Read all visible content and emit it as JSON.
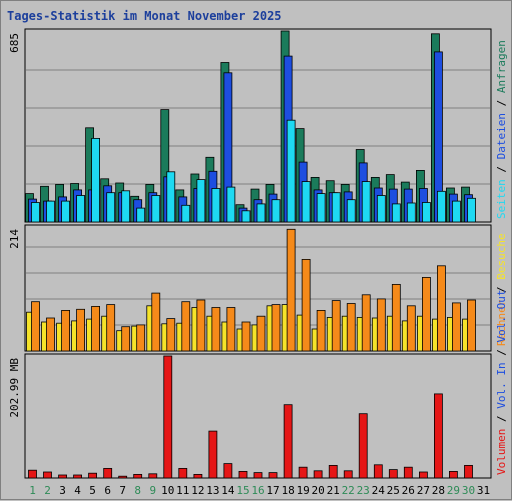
{
  "chart_data": {
    "type": "bar",
    "title": "Tages-Statistik im Monat November 2025",
    "categories": [
      "1",
      "2",
      "3",
      "4",
      "5",
      "6",
      "7",
      "8",
      "9",
      "10",
      "11",
      "12",
      "13",
      "14",
      "15",
      "16",
      "17",
      "18",
      "19",
      "20",
      "21",
      "22",
      "23",
      "24",
      "25",
      "26",
      "27",
      "28",
      "29",
      "30",
      "31"
    ],
    "weekend_days": [
      "1",
      "2",
      "8",
      "9",
      "15",
      "16",
      "22",
      "23",
      "29",
      "30"
    ],
    "colors": {
      "title": "#1c3f9c",
      "background": "#c0c0c0",
      "plot_background": "#c0c0c0",
      "weekday_label": "#000000",
      "weekend_label": "#2e8b57",
      "hits": "#1b7b5b",
      "files": "#1d4ee0",
      "pages": "#1ed9f2",
      "visits": "#f5e32a",
      "sites": "#f58a1a",
      "volume": "#e51616"
    },
    "panels": [
      {
        "name": "requests",
        "ymax_label": "685",
        "ylim": [
          0,
          685
        ],
        "series": [
          {
            "key": "hits",
            "values": [
              102,
              128,
              135,
              138,
              338,
              155,
              140,
              92,
              135,
              403,
              115,
              172,
              232,
              572,
              62,
              118,
              135,
              685,
              335,
              160,
              148,
              135,
              260,
              160,
              170,
              143,
              185,
              675,
              122,
              125,
              0
            ]
          },
          {
            "key": "files",
            "values": [
              82,
              75,
              90,
              115,
              115,
              130,
              105,
              80,
              105,
              162,
              90,
              120,
              182,
              535,
              50,
              80,
              100,
              595,
              215,
              115,
              105,
              108,
              212,
              122,
              118,
              118,
              120,
              610,
              100,
              98,
              0
            ]
          },
          {
            "key": "pages",
            "values": [
              70,
              75,
              75,
              95,
              300,
              105,
              112,
              50,
              95,
              180,
              60,
              152,
              120,
              125,
              40,
              65,
              80,
              365,
              145,
              102,
              105,
              80,
              145,
              95,
              65,
              68,
              70,
              110,
              75,
              85,
              0
            ]
          }
        ]
      },
      {
        "name": "visits",
        "ymax_label": "214",
        "ylim": [
          0,
          214
        ],
        "series": [
          {
            "key": "visits",
            "values": [
              67,
              50,
              48,
              52,
              55,
              60,
              35,
              43,
              78,
              47,
              48,
              75,
              60,
              50,
              38,
              45,
              78,
              80,
              62,
              38,
              58,
              60,
              58,
              57,
              60,
              52,
              60,
              55,
              58,
              55,
              0
            ]
          },
          {
            "key": "sites",
            "values": [
              85,
              57,
              70,
              72,
              77,
              80,
              42,
              45,
              100,
              56,
              85,
              88,
              75,
              75,
              50,
              60,
              80,
              210,
              158,
              70,
              87,
              82,
              97,
              90,
              115,
              78,
              127,
              147,
              83,
              88,
              0
            ]
          }
        ]
      },
      {
        "name": "volume",
        "ymax_label": "202.99 MB",
        "ylim": [
          0,
          202.99
        ],
        "series": [
          {
            "key": "volume",
            "values": [
              13,
              10,
              5,
              5,
              8,
              16,
              3,
              6,
              7,
              203,
              16,
              6,
              78,
              24,
              11,
              9,
              9,
              122,
              18,
              12,
              21,
              12,
              107,
              22,
              14,
              18,
              10,
              140,
              11,
              21,
              0
            ]
          }
        ]
      }
    ],
    "legend_requests": [
      {
        "text": "Anfragen",
        "key": "hits"
      },
      {
        "text": "Dateien",
        "key": "files"
      },
      {
        "text": "Seiten",
        "key": "pages"
      }
    ],
    "legend_visits": [
      {
        "text": "Besuche",
        "key": "visits"
      },
      {
        "text": "Rechner",
        "key": "sites"
      }
    ],
    "legend_volume": [
      {
        "text": "Vol. Out",
        "key": "files"
      },
      {
        "text": "Vol. In",
        "key": "files"
      },
      {
        "text": "Volumen",
        "key": "volume"
      }
    ]
  }
}
